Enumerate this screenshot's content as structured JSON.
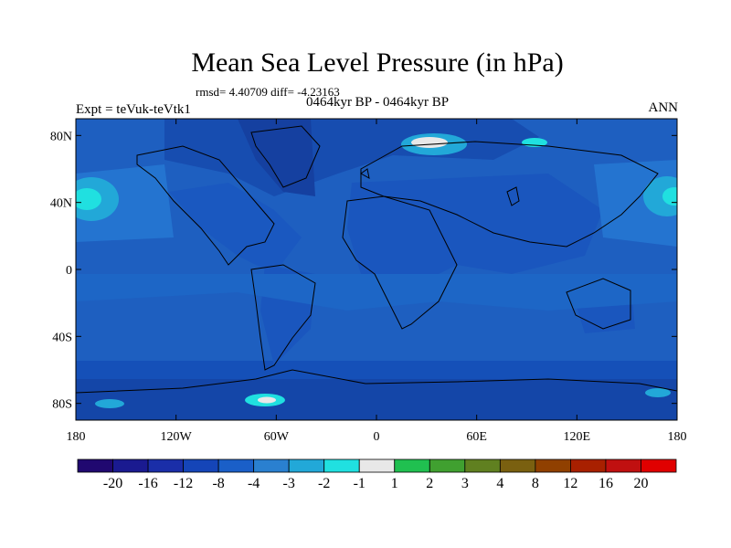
{
  "title": "Mean Sea Level Pressure (in hPa)",
  "stats_text": "rmsd= 4.40709 diff= -4.23163",
  "period_text": "0464kyr BP - 0464kyr BP",
  "experiment_label": "Expt = teVuk-teVtk1",
  "season_label": "ANN",
  "map": {
    "lat_ticks": [
      "80N",
      "40N",
      "0",
      "40S",
      "80S"
    ],
    "lon_ticks": [
      "180",
      "120W",
      "60W",
      "0",
      "60E",
      "120E",
      "180"
    ],
    "ocean_color": "#1e5fc0",
    "land_color": "#1553b5"
  },
  "colorbar": {
    "labels": [
      "-20",
      "-16",
      "-12",
      "-8",
      "-4",
      "-3",
      "-2",
      "-1",
      "1",
      "2",
      "3",
      "4",
      "8",
      "12",
      "16",
      "20"
    ],
    "colors": [
      "#200870",
      "#1a1a90",
      "#1a2ea8",
      "#1545b8",
      "#1a5fc8",
      "#2a80d0",
      "#22a8d8",
      "#20e0e0",
      "#e8e8e8",
      "#20c050",
      "#40a030",
      "#608020",
      "#7a6010",
      "#904000",
      "#a82000",
      "#c01010",
      "#e00000"
    ]
  }
}
